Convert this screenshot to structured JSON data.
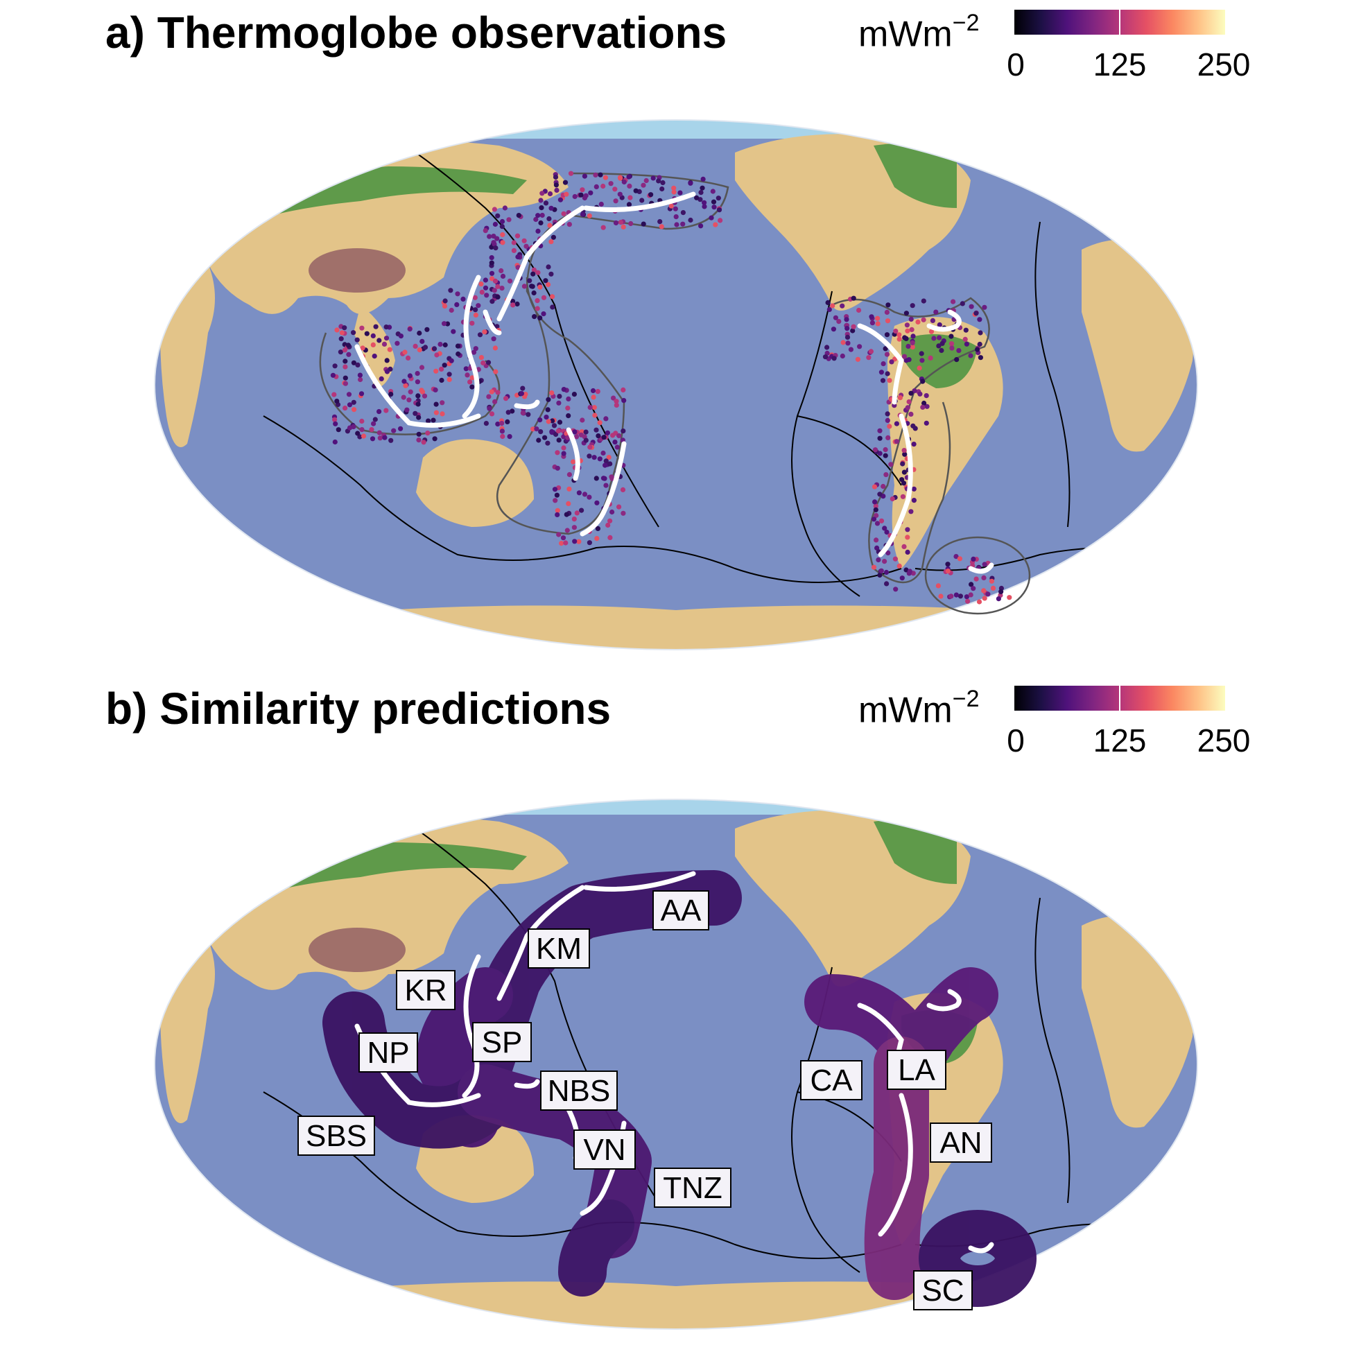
{
  "panels": [
    {
      "title": "a) Thermoglobe observations",
      "unit_base": "mWm",
      "unit_exp": "−2",
      "colorbar": {
        "ticks": [
          "0",
          "125",
          "250"
        ],
        "colors": [
          "#000004",
          "#4f127b",
          "#b5367a",
          "#fb8761",
          "#fcfdbf"
        ]
      }
    },
    {
      "title": "b) Similarity predictions",
      "unit_base": "mWm",
      "unit_exp": "−2",
      "colorbar": {
        "ticks": [
          "0",
          "125",
          "250"
        ],
        "colors": [
          "#000004",
          "#4f127b",
          "#b5367a",
          "#fb8761",
          "#fcfdbf"
        ]
      },
      "region_labels": [
        "AA",
        "KM",
        "KR",
        "SP",
        "NP",
        "NBS",
        "SBS",
        "VN",
        "TNZ",
        "CA",
        "LA",
        "AN",
        "SC"
      ]
    }
  ],
  "colors": {
    "ocean": "#7b8fc4",
    "ocean_shallow": "#a8d4ea",
    "land_low": "#5f9a4a",
    "land_mid": "#e3c489",
    "plateau": "#a0706a",
    "segment": "#ffffff",
    "boundary": "#000000"
  }
}
